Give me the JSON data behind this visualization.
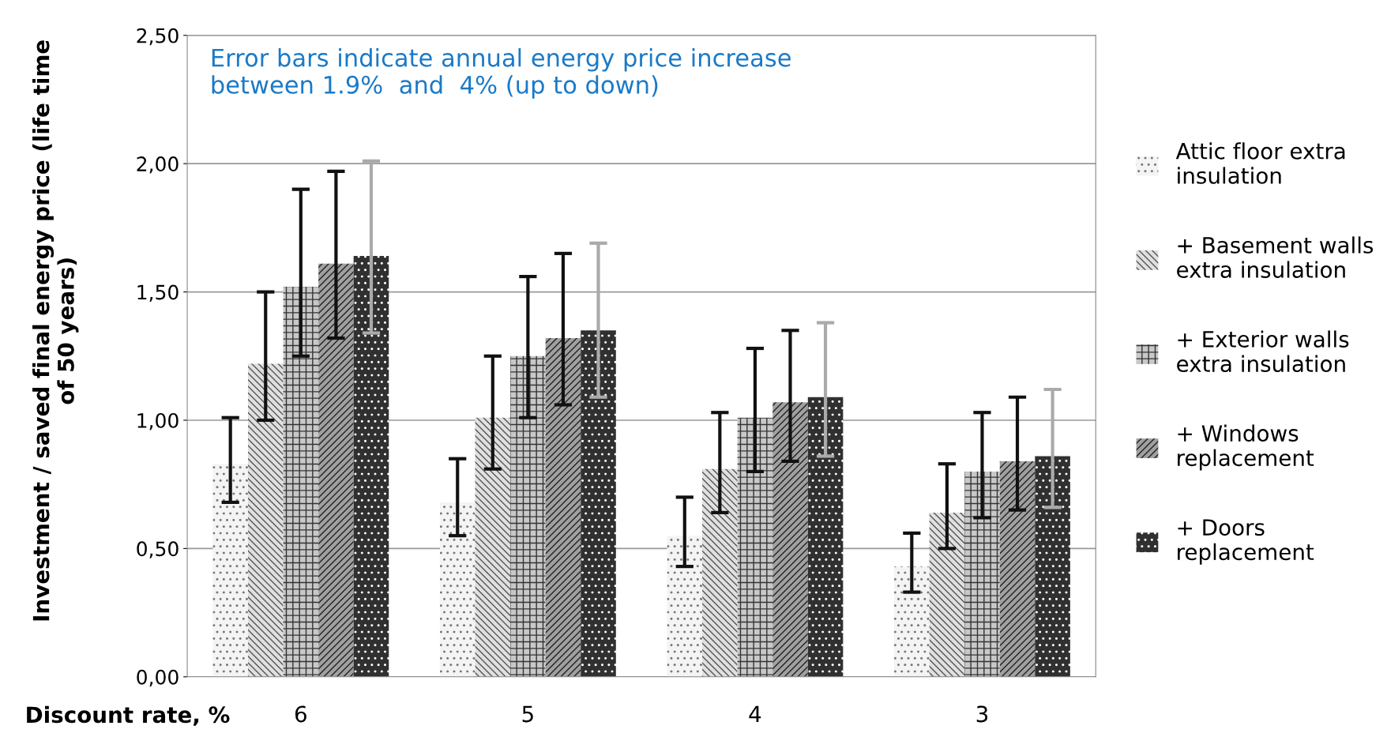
{
  "chart_data": {
    "type": "bar",
    "categories": [
      "6",
      "5",
      "4",
      "3"
    ],
    "xlabel": "Discount rate, %",
    "ylabel": "Investment / saved final energy price (life time\nof 50 years)",
    "annotations": [
      "Error bars indicate annual energy price increase\nbetween 1.9%  and  4% (up to down)"
    ],
    "ylim": [
      0,
      2.5
    ],
    "yticks": [
      {
        "value": 0,
        "label": "0,00"
      },
      {
        "value": 0.5,
        "label": "0,50"
      },
      {
        "value": 1,
        "label": "1,00"
      },
      {
        "value": 1.5,
        "label": "1,50"
      },
      {
        "value": 2,
        "label": "2,00"
      },
      {
        "value": 2.5,
        "label": "2,50"
      }
    ],
    "grid": "y",
    "legend": "right",
    "series": [
      {
        "name": "Attic floor extra\ninsulation",
        "color": "#f4f4f4",
        "values": [
          0.83,
          0.68,
          0.55,
          0.43
        ],
        "errors": [
          [
            0.68,
            1.01
          ],
          [
            0.55,
            0.85
          ],
          [
            0.43,
            0.7
          ],
          [
            0.33,
            0.56
          ]
        ]
      },
      {
        "name": "+ Basement walls\nextra insulation",
        "color": "#e0e0e0",
        "values": [
          1.22,
          1.01,
          0.81,
          0.64
        ],
        "errors": [
          [
            1.0,
            1.5
          ],
          [
            0.81,
            1.25
          ],
          [
            0.64,
            1.03
          ],
          [
            0.5,
            0.83
          ]
        ]
      },
      {
        "name": "+ Exterior walls\nextra insulation",
        "color": "#c8c8c8",
        "values": [
          1.52,
          1.25,
          1.01,
          0.8
        ],
        "errors": [
          [
            1.25,
            1.9
          ],
          [
            1.01,
            1.56
          ],
          [
            0.8,
            1.28
          ],
          [
            0.62,
            1.03
          ]
        ]
      },
      {
        "name": "+ Windows\nreplacement",
        "color": "#a0a0a0",
        "values": [
          1.61,
          1.32,
          1.07,
          0.84
        ],
        "errors": [
          [
            1.32,
            1.97
          ],
          [
            1.06,
            1.65
          ],
          [
            0.84,
            1.35
          ],
          [
            0.65,
            1.09
          ]
        ]
      },
      {
        "name": "+ Doors\nreplacement",
        "color": "#303030",
        "values": [
          1.64,
          1.35,
          1.09,
          0.86
        ],
        "errors": [
          [
            1.34,
            2.01
          ],
          [
            1.09,
            1.69
          ],
          [
            0.86,
            1.38
          ],
          [
            0.66,
            1.12
          ]
        ]
      }
    ]
  }
}
